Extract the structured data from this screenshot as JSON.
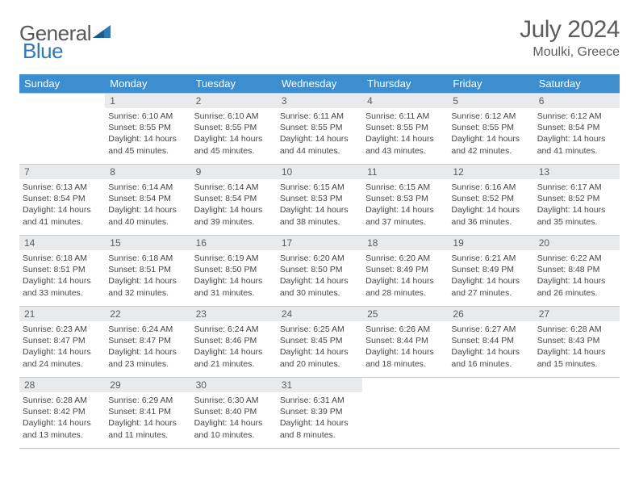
{
  "brand": {
    "text_general": "General",
    "text_blue": "Blue",
    "icon_color": "#2f78ba"
  },
  "title": {
    "month": "July 2024",
    "location": "Moulki, Greece"
  },
  "style": {
    "header_bg": "#3c8ecf",
    "header_text": "#ffffff",
    "daynum_bg": "#e9eaeb",
    "body_text": "#444648",
    "logo_gray": "#56585a",
    "logo_blue": "#2f78ba",
    "border": "#c8c8c8"
  },
  "weekdays": [
    "Sunday",
    "Monday",
    "Tuesday",
    "Wednesday",
    "Thursday",
    "Friday",
    "Saturday"
  ],
  "days": {
    "1": {
      "sunrise": "6:10 AM",
      "sunset": "8:55 PM",
      "daylight": "14 hours and 45 minutes."
    },
    "2": {
      "sunrise": "6:10 AM",
      "sunset": "8:55 PM",
      "daylight": "14 hours and 45 minutes."
    },
    "3": {
      "sunrise": "6:11 AM",
      "sunset": "8:55 PM",
      "daylight": "14 hours and 44 minutes."
    },
    "4": {
      "sunrise": "6:11 AM",
      "sunset": "8:55 PM",
      "daylight": "14 hours and 43 minutes."
    },
    "5": {
      "sunrise": "6:12 AM",
      "sunset": "8:55 PM",
      "daylight": "14 hours and 42 minutes."
    },
    "6": {
      "sunrise": "6:12 AM",
      "sunset": "8:54 PM",
      "daylight": "14 hours and 41 minutes."
    },
    "7": {
      "sunrise": "6:13 AM",
      "sunset": "8:54 PM",
      "daylight": "14 hours and 41 minutes."
    },
    "8": {
      "sunrise": "6:14 AM",
      "sunset": "8:54 PM",
      "daylight": "14 hours and 40 minutes."
    },
    "9": {
      "sunrise": "6:14 AM",
      "sunset": "8:54 PM",
      "daylight": "14 hours and 39 minutes."
    },
    "10": {
      "sunrise": "6:15 AM",
      "sunset": "8:53 PM",
      "daylight": "14 hours and 38 minutes."
    },
    "11": {
      "sunrise": "6:15 AM",
      "sunset": "8:53 PM",
      "daylight": "14 hours and 37 minutes."
    },
    "12": {
      "sunrise": "6:16 AM",
      "sunset": "8:52 PM",
      "daylight": "14 hours and 36 minutes."
    },
    "13": {
      "sunrise": "6:17 AM",
      "sunset": "8:52 PM",
      "daylight": "14 hours and 35 minutes."
    },
    "14": {
      "sunrise": "6:18 AM",
      "sunset": "8:51 PM",
      "daylight": "14 hours and 33 minutes."
    },
    "15": {
      "sunrise": "6:18 AM",
      "sunset": "8:51 PM",
      "daylight": "14 hours and 32 minutes."
    },
    "16": {
      "sunrise": "6:19 AM",
      "sunset": "8:50 PM",
      "daylight": "14 hours and 31 minutes."
    },
    "17": {
      "sunrise": "6:20 AM",
      "sunset": "8:50 PM",
      "daylight": "14 hours and 30 minutes."
    },
    "18": {
      "sunrise": "6:20 AM",
      "sunset": "8:49 PM",
      "daylight": "14 hours and 28 minutes."
    },
    "19": {
      "sunrise": "6:21 AM",
      "sunset": "8:49 PM",
      "daylight": "14 hours and 27 minutes."
    },
    "20": {
      "sunrise": "6:22 AM",
      "sunset": "8:48 PM",
      "daylight": "14 hours and 26 minutes."
    },
    "21": {
      "sunrise": "6:23 AM",
      "sunset": "8:47 PM",
      "daylight": "14 hours and 24 minutes."
    },
    "22": {
      "sunrise": "6:24 AM",
      "sunset": "8:47 PM",
      "daylight": "14 hours and 23 minutes."
    },
    "23": {
      "sunrise": "6:24 AM",
      "sunset": "8:46 PM",
      "daylight": "14 hours and 21 minutes."
    },
    "24": {
      "sunrise": "6:25 AM",
      "sunset": "8:45 PM",
      "daylight": "14 hours and 20 minutes."
    },
    "25": {
      "sunrise": "6:26 AM",
      "sunset": "8:44 PM",
      "daylight": "14 hours and 18 minutes."
    },
    "26": {
      "sunrise": "6:27 AM",
      "sunset": "8:44 PM",
      "daylight": "14 hours and 16 minutes."
    },
    "27": {
      "sunrise": "6:28 AM",
      "sunset": "8:43 PM",
      "daylight": "14 hours and 15 minutes."
    },
    "28": {
      "sunrise": "6:28 AM",
      "sunset": "8:42 PM",
      "daylight": "14 hours and 13 minutes."
    },
    "29": {
      "sunrise": "6:29 AM",
      "sunset": "8:41 PM",
      "daylight": "14 hours and 11 minutes."
    },
    "30": {
      "sunrise": "6:30 AM",
      "sunset": "8:40 PM",
      "daylight": "14 hours and 10 minutes."
    },
    "31": {
      "sunrise": "6:31 AM",
      "sunset": "8:39 PM",
      "daylight": "14 hours and 8 minutes."
    }
  },
  "layout": {
    "start_offset": 1,
    "num_days": 31,
    "labels": {
      "sunrise": "Sunrise:",
      "sunset": "Sunset:",
      "daylight": "Daylight:"
    }
  }
}
